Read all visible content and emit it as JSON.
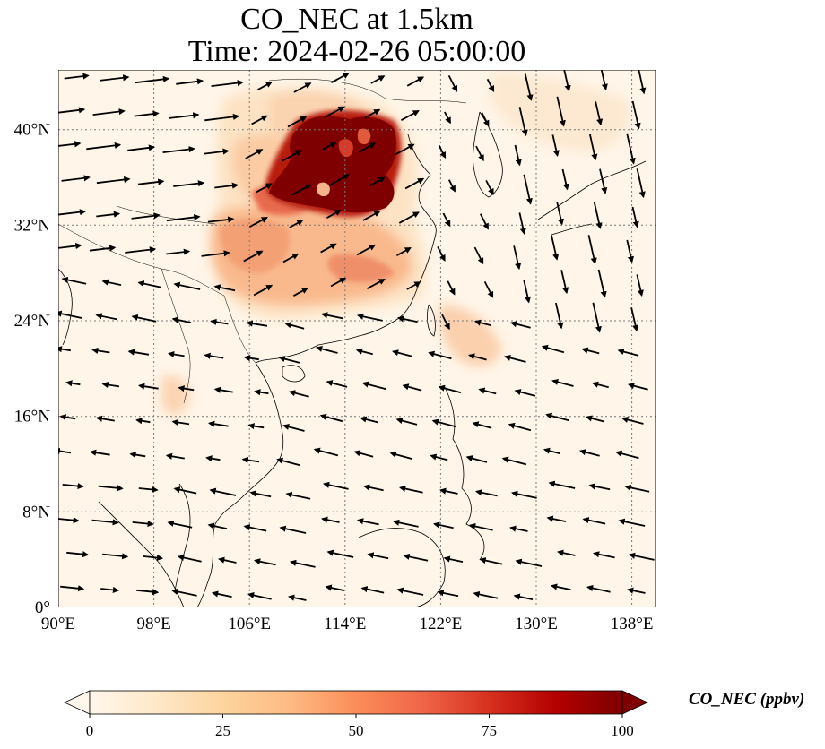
{
  "title": {
    "line1": "CO_NEC at 1.5km",
    "line2": "Time: 2024-02-26 05:00:00"
  },
  "map": {
    "lon_ticks": [
      "90°E",
      "98°E",
      "106°E",
      "114°E",
      "122°E",
      "130°E",
      "138°E"
    ],
    "lat_ticks": [
      "0°",
      "8°N",
      "16°N",
      "24°N",
      "32°N",
      "40°N"
    ],
    "lon_range": [
      90,
      140
    ],
    "lat_range": [
      0,
      45
    ],
    "gridlines": true
  },
  "colorbar": {
    "label": "CO_NEC (ppbv)",
    "ticks": [
      "0",
      "25",
      "50",
      "75",
      "100"
    ],
    "range": [
      0,
      100
    ],
    "colormap": [
      "#fff7ec",
      "#fee8c8",
      "#fdd49e",
      "#fdbb84",
      "#fc8d59",
      "#ef6548",
      "#d7301f",
      "#b30000",
      "#7f0000"
    ],
    "extend": "both"
  },
  "colors": {
    "background_field": "#fff5e8",
    "coastline": "#000000",
    "gridline": "#777777",
    "high_concentration": "#7f0000"
  }
}
